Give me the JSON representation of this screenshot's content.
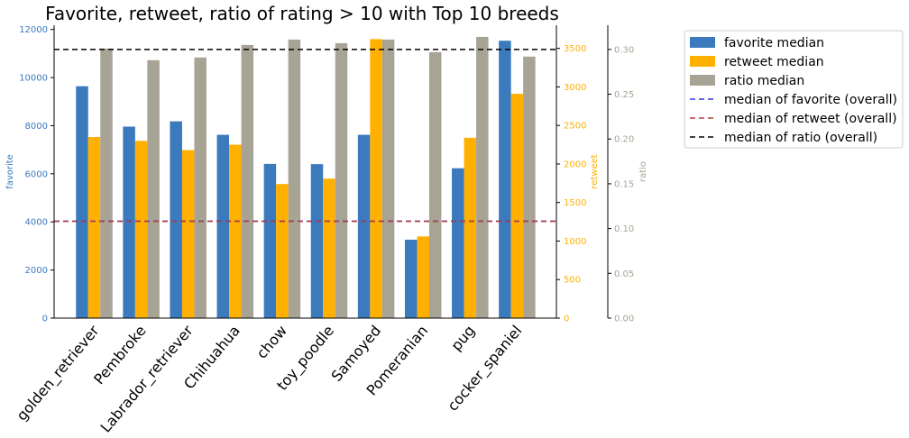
{
  "chart_data": {
    "type": "bar",
    "title": "Favorite, retweet, ratio of rating > 10 with Top 10 breeds",
    "categories": [
      "golden_retriever",
      "Pembroke",
      "Labrador_retriever",
      "Chihuahua",
      "chow",
      "toy_poodle",
      "Samoyed",
      "Pomeranian",
      "pug",
      "cocker_spaniel"
    ],
    "series": [
      {
        "name": "favorite median",
        "axis": "favorite",
        "color": "#3a7abd",
        "values": [
          9640,
          7960,
          8180,
          7620,
          6410,
          6400,
          7620,
          3260,
          6230,
          11530
        ]
      },
      {
        "name": "retweet median",
        "axis": "retweet",
        "color": "#ffb000",
        "values": [
          2350,
          2300,
          2180,
          2250,
          1740,
          1810,
          3620,
          1060,
          2340,
          2910
        ]
      },
      {
        "name": "ratio median",
        "axis": "ratio",
        "color": "#a8a495",
        "values": [
          0.301,
          0.288,
          0.291,
          0.305,
          0.311,
          0.307,
          0.311,
          0.297,
          0.314,
          0.292
        ]
      }
    ],
    "reference_lines": [
      {
        "name": "median of favorite (overall)",
        "axis": "favorite",
        "value": 4030,
        "color": "#3535e6"
      },
      {
        "name": "median of retweet (overall)",
        "axis": "retweet",
        "value": 1255,
        "color": "#b5403a"
      },
      {
        "name": "median of ratio (overall)",
        "axis": "ratio",
        "value": 0.3,
        "color": "#000000"
      }
    ],
    "axes": {
      "favorite": {
        "label": "favorite",
        "ylim": [
          0,
          12175
        ],
        "ticks": [
          0,
          2000,
          4000,
          6000,
          8000,
          10000,
          12000
        ],
        "color": "#3a7abd"
      },
      "retweet": {
        "label": "retweet",
        "ylim": [
          0,
          3800
        ],
        "ticks": [
          0,
          500,
          1000,
          1500,
          2000,
          2500,
          3000,
          3500
        ],
        "color": "#ffb000"
      },
      "ratio": {
        "label": "ratio",
        "ylim": [
          0,
          0.327
        ],
        "ticks": [
          "0.00",
          "0.05",
          "0.10",
          "0.15",
          "0.20",
          "0.25",
          "0.30"
        ],
        "color": "#a8a495"
      }
    },
    "legend_position": "outside-top-right",
    "grid": false
  }
}
